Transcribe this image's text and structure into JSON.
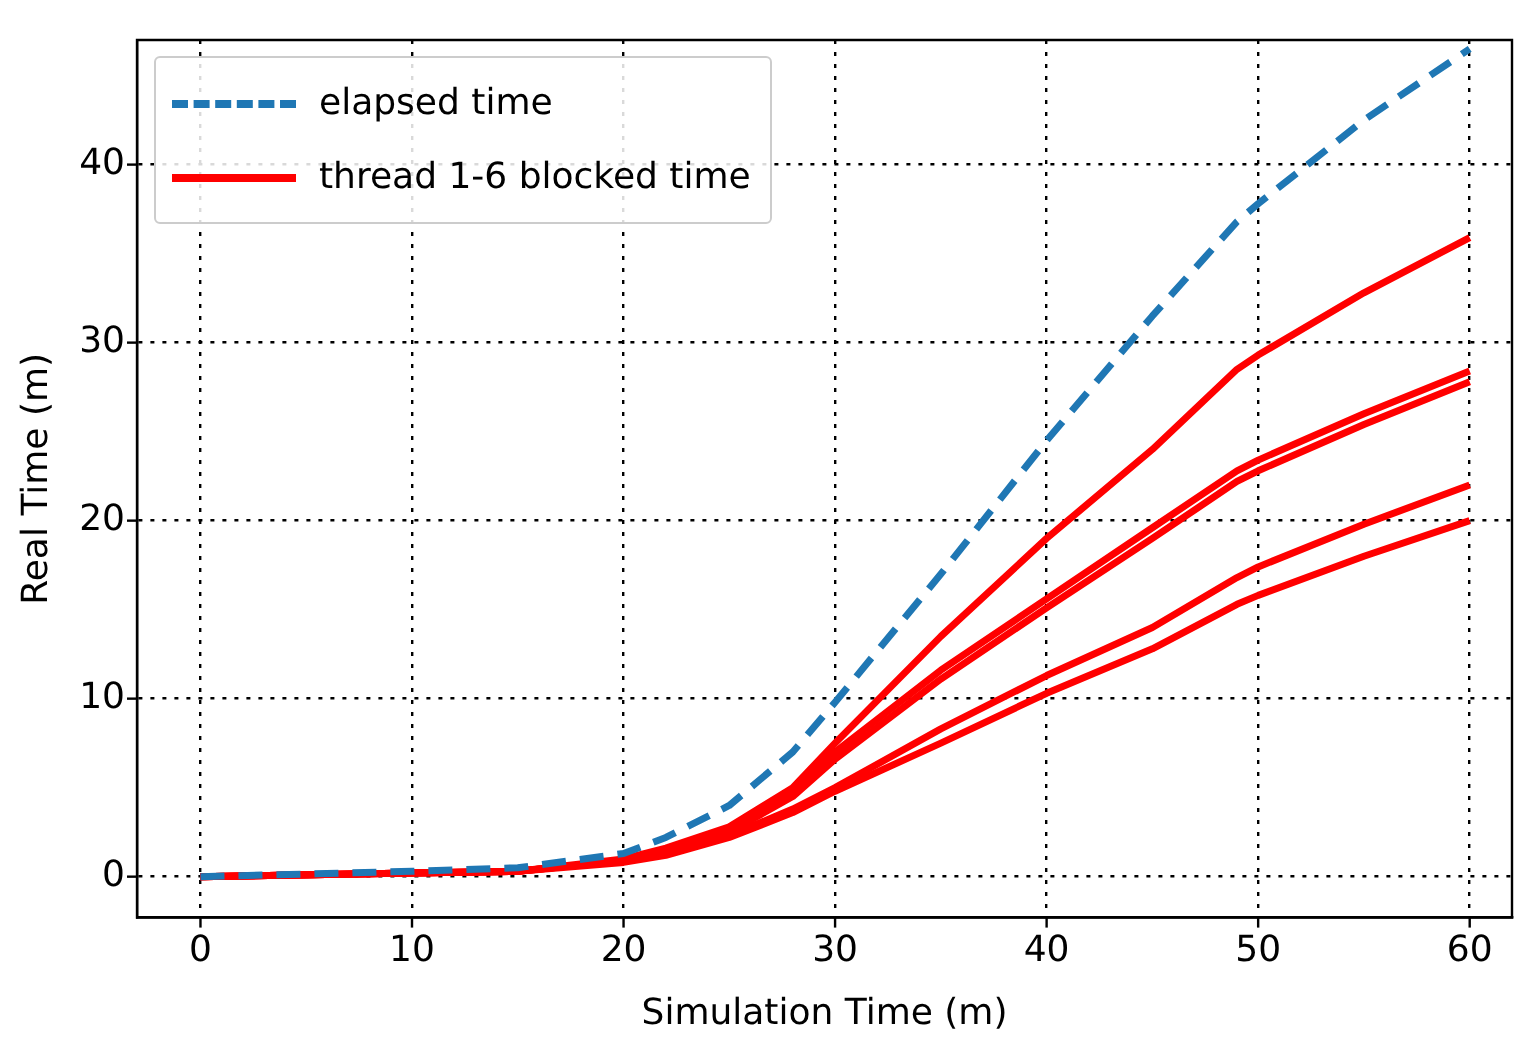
{
  "chart_data": {
    "type": "line",
    "xlabel": "Simulation Time (m)",
    "ylabel": "Real Time (m)",
    "x": [
      0,
      10,
      15,
      20,
      22,
      25,
      28,
      30,
      35,
      40,
      45,
      49,
      50,
      55,
      60
    ],
    "xlim": [
      -3,
      62
    ],
    "ylim": [
      -2.3,
      47
    ],
    "xticks": [
      0,
      10,
      20,
      30,
      40,
      50,
      60
    ],
    "yticks": [
      0,
      10,
      20,
      30,
      40
    ],
    "grid": true,
    "legend": "top left",
    "marker": "none",
    "series": [
      {
        "name": "elapsed time",
        "color": "#1f77b4",
        "line_style": "dashed",
        "values": [
          0,
          0.3,
          0.5,
          1.3,
          2.2,
          4,
          7,
          9.8,
          17,
          24.5,
          31.5,
          36.8,
          37.8,
          42.5,
          46.5
        ]
      },
      {
        "name": "thread 1-6 blocked time",
        "color": "#ff0000",
        "line_style": "solid",
        "values": [
          0,
          0.2,
          0.3,
          1,
          1.6,
          2.8,
          5,
          7.5,
          13.5,
          19,
          24,
          28.5,
          29.3,
          32.8,
          35.9
        ]
      },
      {
        "color": "#ff0000",
        "line_style": "solid",
        "values": [
          0,
          0.2,
          0.3,
          0.9,
          1.5,
          2.6,
          4.8,
          7,
          11.6,
          15.6,
          19.6,
          22.8,
          23.4,
          26,
          28.4
        ]
      },
      {
        "color": "#ff0000",
        "line_style": "solid",
        "values": [
          0,
          0.2,
          0.3,
          0.9,
          1.4,
          2.5,
          4.5,
          6.6,
          11.1,
          15.1,
          19,
          22.2,
          22.8,
          25.4,
          27.8
        ]
      },
      {
        "color": "#ff0000",
        "line_style": "solid",
        "values": [
          0,
          0.2,
          0.3,
          0.9,
          1.3,
          2.3,
          3.8,
          5,
          8.3,
          11.3,
          14,
          16.8,
          17.4,
          19.8,
          22
        ]
      },
      {
        "color": "#ff0000",
        "line_style": "solid",
        "values": [
          0,
          0.2,
          0.3,
          0.8,
          1.2,
          2.2,
          3.6,
          4.8,
          7.5,
          10.3,
          12.8,
          15.3,
          15.8,
          18,
          20
        ]
      }
    ]
  }
}
